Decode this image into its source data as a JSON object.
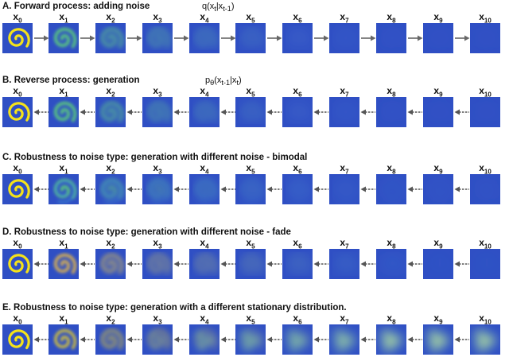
{
  "panels": [
    {
      "id": "A",
      "title": "A. Forward process: adding noise",
      "formula": "q(x_t|x_{t-1})",
      "direction": "forward",
      "arrow_style": "solid",
      "pattern": "fade"
    },
    {
      "id": "B",
      "title": "B. Reverse process: generation",
      "formula": "p_θ(x_{t-1}|x_t)",
      "direction": "reverse",
      "arrow_style": "dashed",
      "pattern": "fade"
    },
    {
      "id": "C",
      "title": "C. Robustness to noise type: generation with different noise - bimodal",
      "formula": "",
      "direction": "reverse",
      "arrow_style": "dashed",
      "pattern": "bimodal"
    },
    {
      "id": "D",
      "title": "D. Robustness to noise type: generation with different noise - fade",
      "formula": "",
      "direction": "reverse",
      "arrow_style": "dashed",
      "pattern": "fadering"
    },
    {
      "id": "E",
      "title": "E. Robustness to noise type: generation with a different stationary distribution.",
      "formula": "",
      "direction": "reverse",
      "arrow_style": "dashed",
      "pattern": "blobs"
    }
  ],
  "step_labels": [
    "x0",
    "x1",
    "x2",
    "x3",
    "x4",
    "x5",
    "x6",
    "x7",
    "x8",
    "x9",
    "x10"
  ],
  "colors": {
    "background_tile": "#2f4fc4",
    "spiral_yellow": "#f4e21a",
    "spiral_green": "#5cd86a",
    "arrow_solid": "#666666",
    "arrow_dashed": "#555555"
  }
}
